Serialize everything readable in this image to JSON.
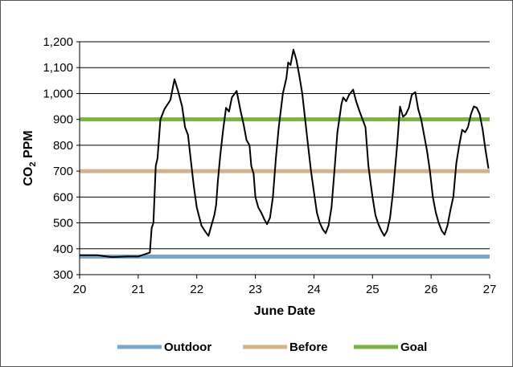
{
  "chart_data": {
    "type": "line",
    "xlabel": "June Date",
    "ylabel": {
      "prefix": "CO",
      "subscript": "2",
      "suffix": " PPM"
    },
    "xlim": [
      20,
      27
    ],
    "ylim": [
      300,
      1200
    ],
    "x_ticks": [
      "20",
      "21",
      "22",
      "23",
      "24",
      "25",
      "26",
      "27"
    ],
    "y_ticks": [
      "300",
      "400",
      "500",
      "600",
      "700",
      "800",
      "900",
      "1,000",
      "1,100",
      "1,200"
    ],
    "y_tick_values": [
      300,
      400,
      500,
      600,
      700,
      800,
      900,
      1000,
      1100,
      1200
    ],
    "grid": "horizontal",
    "legend_position": "bottom",
    "reference_lines": [
      {
        "name": "Outdoor",
        "value": 370,
        "color": "#7BA7CE"
      },
      {
        "name": "Before",
        "value": 700,
        "color": "#D2B48C"
      },
      {
        "name": "Goal",
        "value": 900,
        "color": "#7CB342"
      }
    ],
    "series": [
      {
        "color": "#000000",
        "points": [
          [
            20.0,
            375
          ],
          [
            20.3,
            375
          ],
          [
            20.55,
            368
          ],
          [
            20.8,
            370
          ],
          [
            21.0,
            370
          ],
          [
            21.1,
            378
          ],
          [
            21.2,
            385
          ],
          [
            21.23,
            480
          ],
          [
            21.26,
            500
          ],
          [
            21.3,
            720
          ],
          [
            21.33,
            750
          ],
          [
            21.38,
            900
          ],
          [
            21.45,
            940
          ],
          [
            21.55,
            975
          ],
          [
            21.62,
            1055
          ],
          [
            21.68,
            1010
          ],
          [
            21.75,
            950
          ],
          [
            21.8,
            870
          ],
          [
            21.85,
            840
          ],
          [
            21.9,
            740
          ],
          [
            21.95,
            640
          ],
          [
            22.0,
            560
          ],
          [
            22.08,
            490
          ],
          [
            22.15,
            465
          ],
          [
            22.2,
            450
          ],
          [
            22.25,
            490
          ],
          [
            22.3,
            530
          ],
          [
            22.33,
            570
          ],
          [
            22.36,
            660
          ],
          [
            22.4,
            760
          ],
          [
            22.45,
            860
          ],
          [
            22.5,
            945
          ],
          [
            22.55,
            930
          ],
          [
            22.6,
            985
          ],
          [
            22.68,
            1010
          ],
          [
            22.75,
            930
          ],
          [
            22.8,
            880
          ],
          [
            22.85,
            820
          ],
          [
            22.9,
            800
          ],
          [
            22.93,
            720
          ],
          [
            22.97,
            690
          ],
          [
            23.0,
            600
          ],
          [
            23.05,
            560
          ],
          [
            23.1,
            540
          ],
          [
            23.15,
            515
          ],
          [
            23.2,
            495
          ],
          [
            23.25,
            520
          ],
          [
            23.3,
            600
          ],
          [
            23.35,
            750
          ],
          [
            23.4,
            870
          ],
          [
            23.47,
            1000
          ],
          [
            23.53,
            1060
          ],
          [
            23.56,
            1120
          ],
          [
            23.6,
            1110
          ],
          [
            23.65,
            1170
          ],
          [
            23.7,
            1130
          ],
          [
            23.75,
            1070
          ],
          [
            23.8,
            1000
          ],
          [
            23.85,
            900
          ],
          [
            23.9,
            800
          ],
          [
            23.95,
            700
          ],
          [
            24.0,
            620
          ],
          [
            24.05,
            540
          ],
          [
            24.1,
            500
          ],
          [
            24.15,
            475
          ],
          [
            24.2,
            460
          ],
          [
            24.25,
            490
          ],
          [
            24.3,
            560
          ],
          [
            24.35,
            700
          ],
          [
            24.4,
            850
          ],
          [
            24.47,
            960
          ],
          [
            24.5,
            985
          ],
          [
            24.55,
            970
          ],
          [
            24.6,
            995
          ],
          [
            24.67,
            1015
          ],
          [
            24.72,
            970
          ],
          [
            24.78,
            930
          ],
          [
            24.83,
            900
          ],
          [
            24.88,
            870
          ],
          [
            24.93,
            720
          ],
          [
            24.97,
            650
          ],
          [
            25.0,
            600
          ],
          [
            25.05,
            530
          ],
          [
            25.1,
            495
          ],
          [
            25.15,
            470
          ],
          [
            25.2,
            450
          ],
          [
            25.25,
            470
          ],
          [
            25.3,
            520
          ],
          [
            25.35,
            620
          ],
          [
            25.42,
            800
          ],
          [
            25.47,
            950
          ],
          [
            25.52,
            910
          ],
          [
            25.57,
            920
          ],
          [
            25.62,
            945
          ],
          [
            25.67,
            995
          ],
          [
            25.73,
            1005
          ],
          [
            25.78,
            940
          ],
          [
            25.83,
            900
          ],
          [
            25.88,
            840
          ],
          [
            25.93,
            780
          ],
          [
            25.98,
            700
          ],
          [
            26.03,
            600
          ],
          [
            26.08,
            540
          ],
          [
            26.13,
            500
          ],
          [
            26.18,
            470
          ],
          [
            26.23,
            455
          ],
          [
            26.28,
            490
          ],
          [
            26.33,
            550
          ],
          [
            26.38,
            600
          ],
          [
            26.43,
            730
          ],
          [
            26.48,
            800
          ],
          [
            26.53,
            860
          ],
          [
            26.58,
            850
          ],
          [
            26.63,
            870
          ],
          [
            26.68,
            920
          ],
          [
            26.73,
            950
          ],
          [
            26.78,
            945
          ],
          [
            26.83,
            920
          ],
          [
            26.88,
            860
          ],
          [
            26.93,
            780
          ],
          [
            26.98,
            710
          ]
        ]
      }
    ]
  }
}
